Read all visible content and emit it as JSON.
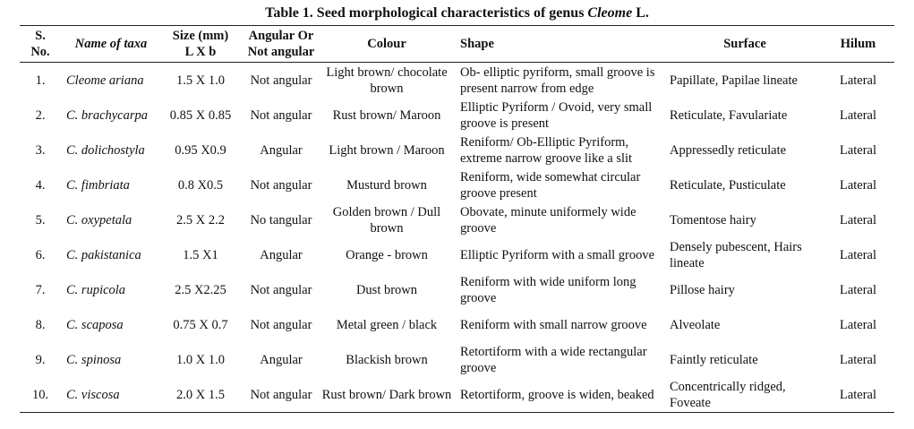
{
  "caption": {
    "prefix": "Table 1. Seed morphological characteristics of genus ",
    "genus": "Cleome",
    "suffix": " L."
  },
  "headers": {
    "sno_line1": "S.",
    "sno_line2": "No.",
    "name": "Name of taxa",
    "size_line1": "Size (mm)",
    "size_line2": "L X b",
    "angular_line1": "Angular Or",
    "angular_line2": "Not angular",
    "colour": "Colour",
    "shape": "Shape",
    "surface": "Surface",
    "hilum": "Hilum"
  },
  "rows": [
    {
      "sno": "1.",
      "name": "Cleome ariana",
      "size": "1.5 X 1.0",
      "angular": "Not angular",
      "colour": "Light brown/ chocolate brown",
      "shape": "Ob- elliptic pyriform, small groove is present narrow from edge",
      "surface": "Papillate, Papilae lineate",
      "hilum": "Lateral"
    },
    {
      "sno": "2.",
      "name": "C. brachycarpa",
      "size": "0.85 X 0.85",
      "angular": "Not angular",
      "colour": "Rust brown/ Maroon",
      "shape": "Elliptic Pyriform / Ovoid, very small groove is present",
      "surface": "Reticulate, Favulariate",
      "hilum": "Lateral"
    },
    {
      "sno": "3.",
      "name": "C. dolichostyla",
      "size": "0.95 X0.9",
      "angular": "Angular",
      "colour": "Light brown / Maroon",
      "shape": "Reniform/ Ob-Elliptic Pyriform, extreme narrow groove like a slit",
      "surface": "Appressedly reticulate",
      "hilum": "Lateral"
    },
    {
      "sno": "4.",
      "name": "C. fimbriata",
      "size": "0.8 X0.5",
      "angular": "Not angular",
      "colour": "Musturd brown",
      "shape": "Reniform, wide somewhat circular groove present",
      "surface": "Reticulate, Pusticulate",
      "hilum": "Lateral"
    },
    {
      "sno": "5.",
      "name": "C. oxypetala",
      "size": "2.5 X 2.2",
      "angular": "No tangular",
      "colour": "Golden brown / Dull brown",
      "shape": "Obovate, minute uniformely wide groove",
      "surface": "Tomentose hairy",
      "hilum": "Lateral"
    },
    {
      "sno": "6.",
      "name": "C. pakistanica",
      "size": "1.5 X1",
      "angular": "Angular",
      "colour": "Orange - brown",
      "shape": "Elliptic Pyriform with a small groove",
      "surface": "Densely pubescent, Hairs lineate",
      "hilum": "Lateral"
    },
    {
      "sno": "7.",
      "name": "C. rupicola",
      "size": "2.5 X2.25",
      "angular": "Not angular",
      "colour": "Dust brown",
      "shape": "Reniform with wide uniform long groove",
      "surface": "Pillose hairy",
      "hilum": "Lateral"
    },
    {
      "sno": "8.",
      "name": "C. scaposa",
      "size": "0.75 X 0.7",
      "angular": "Not angular",
      "colour": "Metal green / black",
      "shape": "Reniform with small narrow groove",
      "surface": "Alveolate",
      "hilum": "Lateral"
    },
    {
      "sno": "9.",
      "name": "C. spinosa",
      "size": "1.0 X 1.0",
      "angular": "Angular",
      "colour": "Blackish brown",
      "shape": "Retortiform with a wide rectangular groove",
      "surface": "Faintly reticulate",
      "hilum": "Lateral"
    },
    {
      "sno": "10.",
      "name": "C. viscosa",
      "size": "2.0 X 1.5",
      "angular": "Not angular",
      "colour": "Rust brown/ Dark brown",
      "shape": "Retortiform, groove is widen, beaked",
      "surface": "Concentrically ridged, Foveate",
      "hilum": "Lateral"
    }
  ]
}
